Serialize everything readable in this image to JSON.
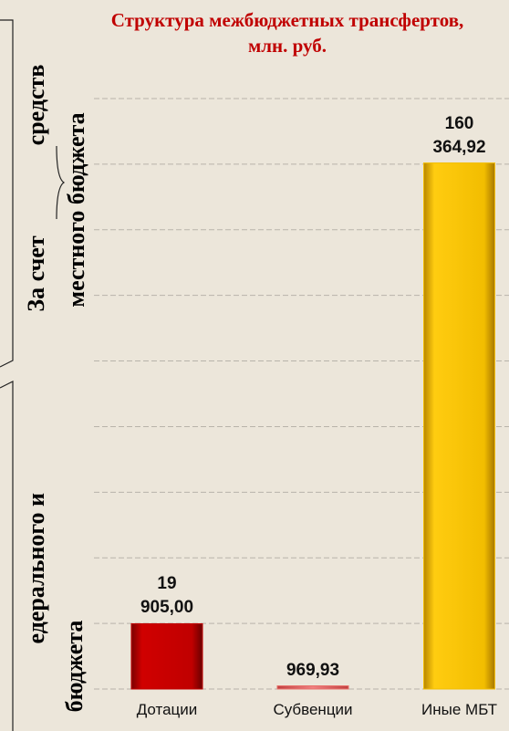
{
  "side_labels": {
    "local_1": "За счет",
    "local_2": "средств",
    "local_3": "местного  бюджета",
    "federal_1": "едерального и",
    "federal_2": "бюджета"
  },
  "chart_data": {
    "type": "bar",
    "title": "Структура  межбюджетных трансфертов, млн. руб.",
    "categories": [
      "Дотации",
      "Субвенции",
      "Иные МБТ"
    ],
    "values": [
      19905.0,
      969.93,
      160364.92
    ],
    "value_labels": [
      "19 905,00",
      "969,93",
      "160 364,92"
    ],
    "colors": [
      "#c00000",
      "#e8706a",
      "#f2bd00"
    ],
    "ylim": [
      0,
      180000
    ],
    "yticks": [
      0,
      20000,
      40000,
      60000,
      80000,
      100000,
      120000,
      140000,
      160000,
      180000
    ],
    "grid": true
  }
}
